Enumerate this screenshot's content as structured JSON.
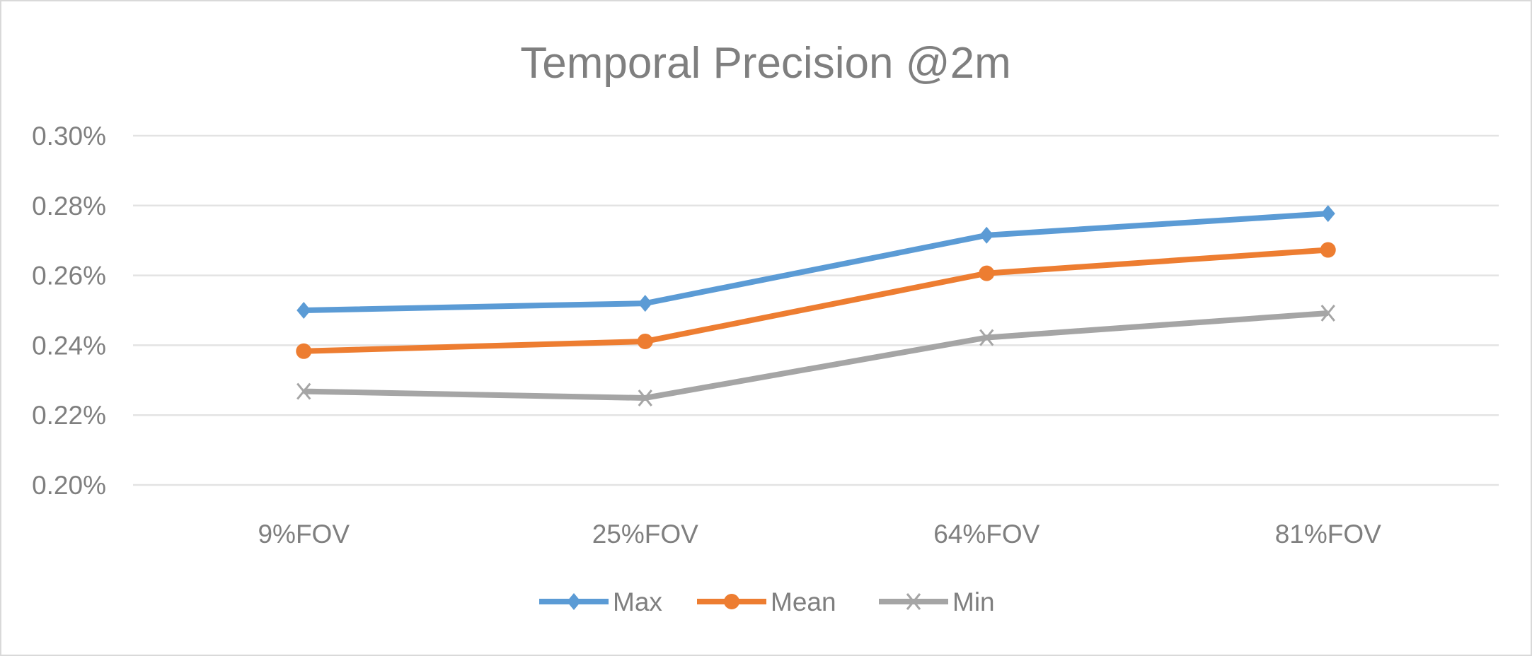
{
  "chart_data": {
    "type": "line",
    "title": "Temporal Precision @2m",
    "xlabel": "",
    "ylabel": "",
    "categories": [
      "9%FOV",
      "25%FOV",
      "64%FOV",
      "81%FOV"
    ],
    "ylim": [
      0.2,
      0.3
    ],
    "yticks": [
      "0.20%",
      "0.22%",
      "0.24%",
      "0.26%",
      "0.28%",
      "0.30%"
    ],
    "ytick_values": [
      0.2,
      0.22,
      0.24,
      0.26,
      0.28,
      0.3
    ],
    "grid": true,
    "legend_position": "bottom",
    "series": [
      {
        "name": "Max",
        "values": [
          0.25,
          0.252,
          0.2715,
          0.2777
        ],
        "color": "#5b9bd5",
        "marker": "diamond"
      },
      {
        "name": "Mean",
        "values": [
          0.2383,
          0.2411,
          0.2606,
          0.2673
        ],
        "color": "#ed7d31",
        "marker": "circle"
      },
      {
        "name": "Min",
        "values": [
          0.2268,
          0.2249,
          0.2422,
          0.2492
        ],
        "color": "#a5a5a5",
        "marker": "x"
      }
    ]
  }
}
